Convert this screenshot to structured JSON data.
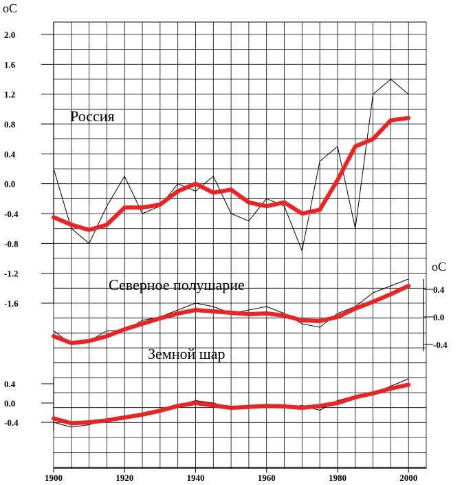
{
  "chart_data": [
    {
      "type": "line",
      "title": "Россия",
      "ylabel": "oC",
      "ylim": [
        -1.6,
        2.0
      ],
      "yticks": [
        "2.0",
        "1.6",
        "1.2",
        "0.8",
        "0.4",
        "0.0",
        "-0.4",
        "-0.8",
        "-1.2",
        "-1.6"
      ],
      "x": [
        1900,
        1905,
        1910,
        1915,
        1920,
        1925,
        1930,
        1935,
        1940,
        1945,
        1950,
        1955,
        1960,
        1965,
        1970,
        1975,
        1980,
        1985,
        1990,
        1995,
        2000
      ],
      "series": [
        {
          "values": [
            0.2,
            -0.6,
            -0.8,
            -0.3,
            0.1,
            -0.4,
            -0.3,
            0.0,
            -0.1,
            0.1,
            -0.4,
            -0.5,
            -0.2,
            -0.3,
            -0.9,
            0.3,
            0.5,
            -0.6,
            1.2,
            1.4,
            1.2
          ]
        },
        {
          "values": [
            -0.45,
            -0.55,
            -0.62,
            -0.55,
            -0.32,
            -0.32,
            -0.28,
            -0.1,
            0.0,
            -0.12,
            -0.08,
            -0.25,
            -0.3,
            -0.25,
            -0.4,
            -0.35,
            0.05,
            0.5,
            0.6,
            0.85,
            0.88
          ]
        }
      ],
      "colors": [
        "#000000",
        "#ee2222"
      ]
    },
    {
      "type": "line",
      "title": "Северное полушарие",
      "ylabel": "oC",
      "ylim": [
        -0.4,
        0.6
      ],
      "yticks": [
        "0.4",
        "0.0",
        "-0.4"
      ],
      "x": [
        1900,
        1905,
        1910,
        1915,
        1920,
        1925,
        1930,
        1935,
        1940,
        1945,
        1950,
        1955,
        1960,
        1965,
        1970,
        1975,
        1980,
        1985,
        1990,
        1995,
        2000
      ],
      "series": [
        {
          "values": [
            -0.2,
            -0.4,
            -0.35,
            -0.2,
            -0.2,
            -0.05,
            0.0,
            0.1,
            0.2,
            0.15,
            0.05,
            0.1,
            0.15,
            0.05,
            -0.1,
            -0.15,
            0.05,
            0.15,
            0.35,
            0.45,
            0.55
          ]
        },
        {
          "values": [
            -0.28,
            -0.38,
            -0.35,
            -0.28,
            -0.18,
            -0.1,
            -0.02,
            0.05,
            0.1,
            0.08,
            0.06,
            0.04,
            0.05,
            0.02,
            -0.05,
            -0.06,
            0.0,
            0.12,
            0.22,
            0.33,
            0.45
          ]
        }
      ],
      "colors": [
        "#000000",
        "#ee2222"
      ]
    },
    {
      "type": "line",
      "title": "Земной шар",
      "ylim": [
        -0.4,
        0.4
      ],
      "yticks": [
        "0.4",
        "0.0",
        "-0.4"
      ],
      "x": [
        1900,
        1905,
        1910,
        1915,
        1920,
        1925,
        1930,
        1935,
        1940,
        1945,
        1950,
        1955,
        1960,
        1965,
        1970,
        1975,
        1980,
        1985,
        1990,
        1995,
        2000
      ],
      "series": [
        {
          "values": [
            -0.4,
            -0.5,
            -0.45,
            -0.35,
            -0.3,
            -0.25,
            -0.15,
            -0.05,
            0.05,
            0.0,
            -0.1,
            -0.05,
            -0.05,
            -0.1,
            -0.05,
            -0.15,
            0.05,
            0.15,
            0.2,
            0.35,
            0.5
          ]
        },
        {
          "values": [
            -0.32,
            -0.42,
            -0.4,
            -0.36,
            -0.3,
            -0.24,
            -0.16,
            -0.06,
            0.0,
            -0.05,
            -0.1,
            -0.08,
            -0.06,
            -0.07,
            -0.1,
            -0.06,
            0.0,
            0.12,
            0.2,
            0.3,
            0.38
          ]
        }
      ],
      "colors": [
        "#000000",
        "#ee2222"
      ]
    }
  ],
  "x_axis": {
    "xlim": [
      1900,
      2005
    ],
    "ticks": [
      "1900",
      "1920",
      "1940",
      "1960",
      "1980",
      "2000"
    ]
  }
}
